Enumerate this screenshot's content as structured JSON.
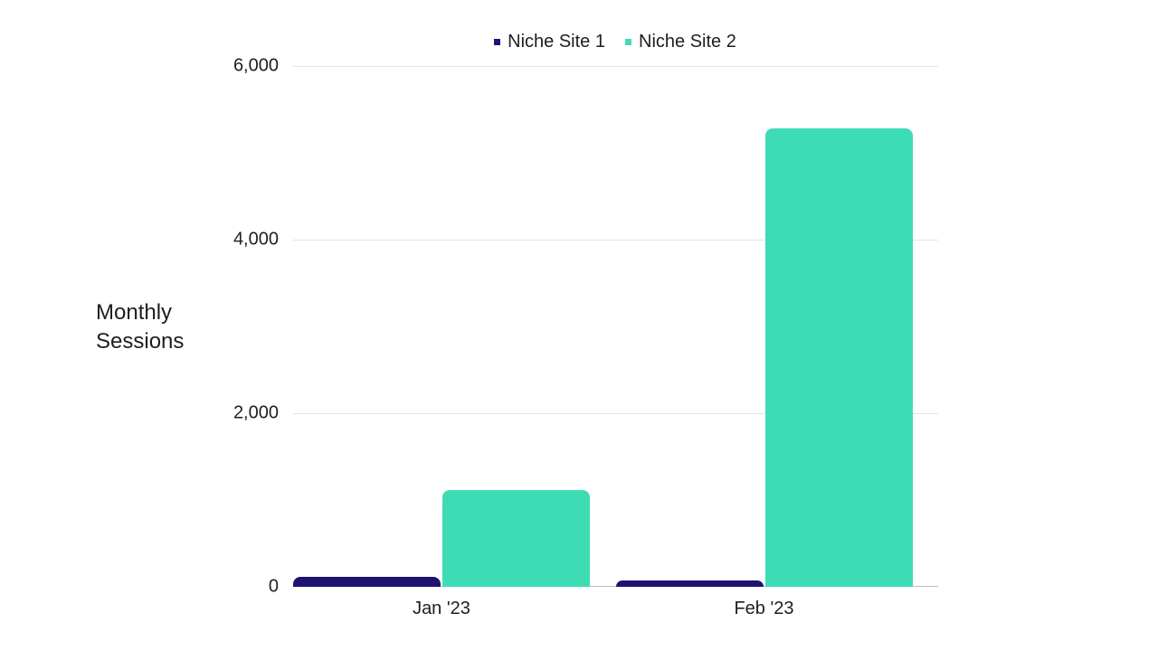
{
  "chart_data": {
    "type": "bar",
    "title": "",
    "xlabel": "",
    "ylabel": "Monthly Sessions",
    "ylabel_lines": [
      "Monthly",
      "Sessions"
    ],
    "categories": [
      "Jan '23",
      "Feb '23"
    ],
    "series": [
      {
        "name": "Niche Site 1",
        "color": "#1e1370",
        "values": [
          115,
          75
        ]
      },
      {
        "name": "Niche Site 2",
        "color": "#3ddcb4",
        "values": [
          1115,
          5280
        ]
      }
    ],
    "ylim": [
      0,
      6000
    ],
    "yticks": [
      0,
      2000,
      4000,
      6000
    ],
    "ytick_labels": [
      "0",
      "2,000",
      "4,000",
      "6,000"
    ],
    "grid": true,
    "legend_position": "top"
  }
}
